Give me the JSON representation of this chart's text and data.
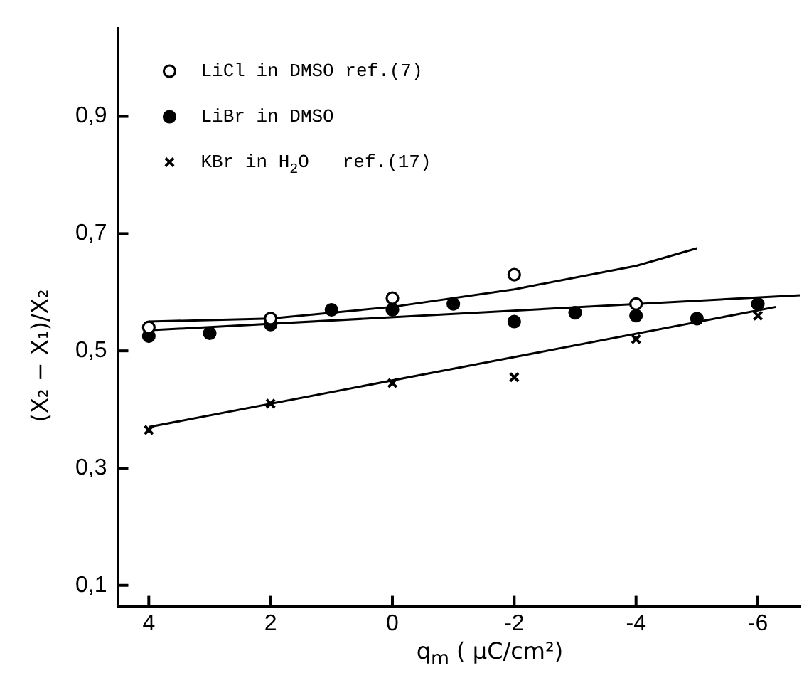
{
  "chart_data": {
    "type": "scatter",
    "xlabel": "q$_{m}$ ( μC/cm²)",
    "ylabel": "(X₂ − X₁)/X₂",
    "xlim": [
      4.5,
      -6.7
    ],
    "xticks": [
      4,
      2,
      0,
      -2,
      -4,
      -6
    ],
    "ylim": [
      0.065,
      1.05
    ],
    "yticks": [
      {
        "value": 0.1,
        "label": "0,1"
      },
      {
        "value": 0.3,
        "label": "0,3"
      },
      {
        "value": 0.5,
        "label": "0,5"
      },
      {
        "value": 0.7,
        "label": "0,7"
      },
      {
        "value": 0.9,
        "label": "0,9"
      }
    ],
    "grid": false,
    "legend": "top left",
    "series": [
      {
        "name": "LiCl in DMSO ref.(7)",
        "color": "#ffffff",
        "marker": "circle",
        "x": [
          4,
          2,
          0,
          -2,
          -4
        ],
        "values": [
          0.54,
          0.555,
          0.59,
          0.63,
          0.58
        ]
      },
      {
        "name": "LiBr in DMSO",
        "color": "#000000",
        "marker": "circle",
        "x": [
          4,
          3,
          2,
          1,
          0,
          -1,
          -2,
          -3,
          -4,
          -5,
          -6
        ],
        "values": [
          0.525,
          0.53,
          0.545,
          0.57,
          0.57,
          0.58,
          0.55,
          0.565,
          0.56,
          0.555,
          0.58
        ]
      },
      {
        "name": "KBr in H$_{2}$O   ref.(17)",
        "color": "#000000",
        "marker": "cross",
        "x": [
          4,
          2,
          0,
          -2,
          -4,
          -6
        ],
        "values": [
          0.365,
          0.41,
          0.445,
          0.455,
          0.52,
          0.56
        ]
      },
      {
        "type": "line",
        "color": "#000000",
        "marker": "none",
        "x": [
          4,
          2,
          0,
          -2,
          -4,
          -5
        ],
        "values": [
          0.55,
          0.555,
          0.575,
          0.605,
          0.645,
          0.675
        ]
      },
      {
        "type": "line",
        "color": "#000000",
        "marker": "none",
        "x": [
          4,
          -6.7
        ],
        "values": [
          0.535,
          0.595
        ]
      },
      {
        "type": "line",
        "color": "#000000",
        "marker": "none",
        "x": [
          4,
          -6.3
        ],
        "values": [
          0.37,
          0.575
        ]
      }
    ]
  }
}
